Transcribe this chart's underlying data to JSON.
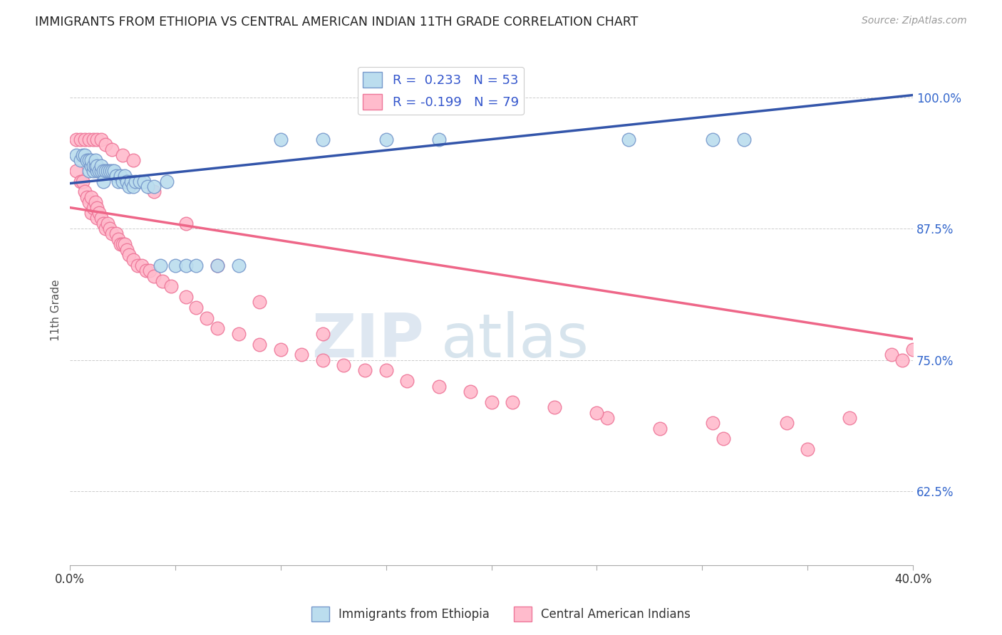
{
  "title": "IMMIGRANTS FROM ETHIOPIA VS CENTRAL AMERICAN INDIAN 11TH GRADE CORRELATION CHART",
  "source": "Source: ZipAtlas.com",
  "ylabel": "11th Grade",
  "ytick_labels": [
    "62.5%",
    "75.0%",
    "87.5%",
    "100.0%"
  ],
  "ytick_values": [
    0.625,
    0.75,
    0.875,
    1.0
  ],
  "xlim": [
    0.0,
    0.4
  ],
  "ylim": [
    0.555,
    1.04
  ],
  "blue_color": "#7799CC",
  "blue_fill": "#BBDDEE",
  "pink_color": "#EE7799",
  "pink_fill": "#FFBBCC",
  "line_blue": "#3355AA",
  "line_pink": "#EE6688",
  "watermark_zip": "ZIP",
  "watermark_atlas": "atlas",
  "legend_label_blue": "Immigrants from Ethiopia",
  "legend_label_pink": "Central American Indians",
  "blue_trend_y0": 0.918,
  "blue_trend_y1": 1.002,
  "pink_trend_y0": 0.895,
  "pink_trend_y1": 0.77,
  "blue_x": [
    0.003,
    0.005,
    0.006,
    0.007,
    0.008,
    0.009,
    0.009,
    0.01,
    0.01,
    0.011,
    0.011,
    0.012,
    0.012,
    0.013,
    0.013,
    0.014,
    0.015,
    0.015,
    0.016,
    0.016,
    0.017,
    0.018,
    0.019,
    0.02,
    0.021,
    0.022,
    0.023,
    0.024,
    0.025,
    0.026,
    0.027,
    0.028,
    0.029,
    0.03,
    0.031,
    0.033,
    0.035,
    0.037,
    0.04,
    0.043,
    0.046,
    0.05,
    0.055,
    0.06,
    0.07,
    0.08,
    0.1,
    0.12,
    0.15,
    0.175,
    0.265,
    0.305,
    0.32
  ],
  "blue_y": [
    0.945,
    0.94,
    0.945,
    0.945,
    0.94,
    0.94,
    0.93,
    0.935,
    0.94,
    0.93,
    0.935,
    0.935,
    0.94,
    0.93,
    0.935,
    0.93,
    0.93,
    0.935,
    0.93,
    0.92,
    0.93,
    0.93,
    0.93,
    0.93,
    0.93,
    0.925,
    0.92,
    0.925,
    0.92,
    0.925,
    0.92,
    0.915,
    0.92,
    0.915,
    0.92,
    0.92,
    0.92,
    0.915,
    0.915,
    0.84,
    0.92,
    0.84,
    0.84,
    0.84,
    0.84,
    0.84,
    0.96,
    0.96,
    0.96,
    0.96,
    0.96,
    0.96,
    0.96
  ],
  "pink_x": [
    0.003,
    0.005,
    0.006,
    0.007,
    0.008,
    0.009,
    0.01,
    0.01,
    0.011,
    0.012,
    0.013,
    0.013,
    0.014,
    0.015,
    0.016,
    0.017,
    0.018,
    0.019,
    0.02,
    0.022,
    0.023,
    0.024,
    0.025,
    0.026,
    0.027,
    0.028,
    0.03,
    0.032,
    0.034,
    0.036,
    0.038,
    0.04,
    0.044,
    0.048,
    0.055,
    0.06,
    0.065,
    0.07,
    0.08,
    0.09,
    0.1,
    0.11,
    0.12,
    0.13,
    0.14,
    0.16,
    0.175,
    0.19,
    0.21,
    0.23,
    0.255,
    0.28,
    0.31,
    0.35,
    0.39,
    0.003,
    0.005,
    0.007,
    0.009,
    0.011,
    0.013,
    0.015,
    0.017,
    0.02,
    0.025,
    0.03,
    0.04,
    0.055,
    0.07,
    0.09,
    0.12,
    0.15,
    0.2,
    0.25,
    0.305,
    0.34,
    0.37,
    0.395,
    0.4
  ],
  "pink_y": [
    0.93,
    0.92,
    0.92,
    0.91,
    0.905,
    0.9,
    0.905,
    0.89,
    0.895,
    0.9,
    0.885,
    0.895,
    0.89,
    0.885,
    0.88,
    0.875,
    0.88,
    0.875,
    0.87,
    0.87,
    0.865,
    0.86,
    0.86,
    0.86,
    0.855,
    0.85,
    0.845,
    0.84,
    0.84,
    0.835,
    0.835,
    0.83,
    0.825,
    0.82,
    0.81,
    0.8,
    0.79,
    0.78,
    0.775,
    0.765,
    0.76,
    0.755,
    0.75,
    0.745,
    0.74,
    0.73,
    0.725,
    0.72,
    0.71,
    0.705,
    0.695,
    0.685,
    0.675,
    0.665,
    0.755,
    0.96,
    0.96,
    0.96,
    0.96,
    0.96,
    0.96,
    0.96,
    0.955,
    0.95,
    0.945,
    0.94,
    0.91,
    0.88,
    0.84,
    0.805,
    0.775,
    0.74,
    0.71,
    0.7,
    0.69,
    0.69,
    0.695,
    0.75,
    0.76
  ]
}
